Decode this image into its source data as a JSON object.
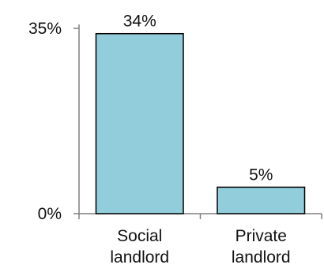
{
  "chart_data": {
    "type": "bar",
    "categories": [
      [
        "Social",
        "landlord"
      ],
      [
        "Private",
        "landlord"
      ]
    ],
    "values": [
      34,
      5
    ],
    "data_labels": [
      "34%",
      "5%"
    ],
    "ylim": [
      0,
      35
    ],
    "yticks": [
      0,
      35
    ],
    "ytick_labels": [
      "0%",
      "35%"
    ],
    "grid": false,
    "legend": "none",
    "title": "",
    "xlabel": "",
    "ylabel": "",
    "colors": {
      "bar_fill": "#92cddc",
      "bar_stroke": "#000000",
      "axis": "#7f7f7f"
    }
  }
}
